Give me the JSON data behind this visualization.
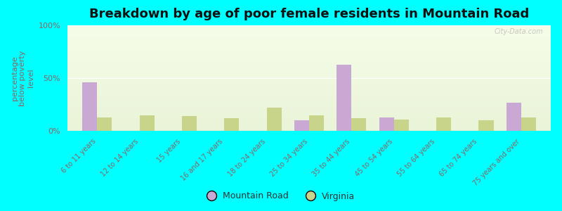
{
  "title": "Breakdown by age of poor female residents in Mountain Road",
  "ylabel": "percentage\nbelow poverty\nlevel",
  "background_color": "#00FFFF",
  "categories": [
    "6 to 11 years",
    "12 to 14 years",
    "15 years",
    "16 and 17 years",
    "18 to 24 years",
    "25 to 34 years",
    "35 to 44 years",
    "45 to 54 years",
    "55 to 64 years",
    "65 to 74 years",
    "75 years and over"
  ],
  "mountain_road": [
    46,
    0,
    0,
    0,
    0,
    10,
    63,
    13,
    0,
    0,
    27
  ],
  "virginia": [
    13,
    15,
    14,
    12,
    22,
    15,
    12,
    11,
    13,
    10,
    13
  ],
  "mountain_road_color": "#c9a8d4",
  "virginia_color": "#c8d48a",
  "ylim": [
    0,
    100
  ],
  "yticks": [
    0,
    50,
    100
  ],
  "ytick_labels": [
    "0%",
    "50%",
    "100%"
  ],
  "bar_width": 0.35,
  "title_fontsize": 13,
  "axis_label_fontsize": 8,
  "tick_fontsize": 8,
  "legend_fontsize": 9,
  "watermark": "City-Data.com",
  "tick_color": "#886666",
  "ylabel_color": "#886666"
}
